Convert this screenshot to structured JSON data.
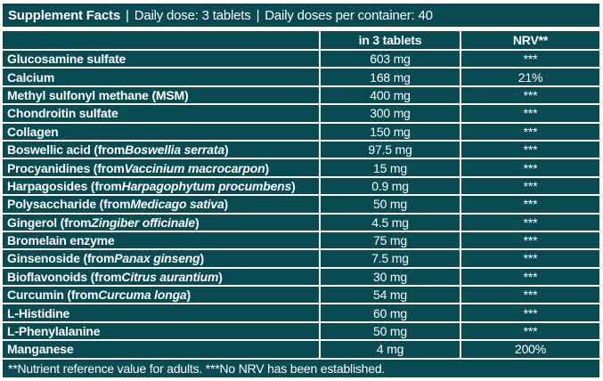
{
  "colors": {
    "panel_teal": "#084b53",
    "text_white": "#ffffff",
    "page_background": "#ffffff"
  },
  "title_bar": {
    "title": "Supplement Facts",
    "sep": "|",
    "daily_dose": "Daily dose: 3 tablets",
    "doses_per_container": "Daily doses per container: 40"
  },
  "table": {
    "column_headers": {
      "name": "",
      "amount": "in 3 tablets",
      "nrv": "NRV**"
    },
    "rows": [
      {
        "name": "Glucosamine sulfate",
        "latin": "",
        "name_end": "",
        "amount": "603 mg",
        "nrv": "***"
      },
      {
        "name": "Calcium",
        "latin": "",
        "name_end": "",
        "amount": "168 mg",
        "nrv": "21%"
      },
      {
        "name": "Methyl sulfonyl methane (MSM)",
        "latin": "",
        "name_end": "",
        "amount": "400 mg",
        "nrv": "***"
      },
      {
        "name": "Chondroitin sulfate",
        "latin": "",
        "name_end": "",
        "amount": "300 mg",
        "nrv": "***"
      },
      {
        "name": "Collagen",
        "latin": "",
        "name_end": "",
        "amount": "150 mg",
        "nrv": "***"
      },
      {
        "name": "Boswellic acid (from ",
        "latin": "Boswellia serrata",
        "name_end": ")",
        "amount": "97.5 mg",
        "nrv": "***"
      },
      {
        "name": "Procyanidines (from ",
        "latin": "Vaccinium macrocarpon",
        "name_end": ")",
        "amount": "15 mg",
        "nrv": "***"
      },
      {
        "name": "Harpagosides (from ",
        "latin": "Harpagophytum procumbens",
        "name_end": ")",
        "amount": "0.9 mg",
        "nrv": "***"
      },
      {
        "name": "Polysaccharide (from ",
        "latin": "Medicago sativa",
        "name_end": ")",
        "amount": "50 mg",
        "nrv": "***"
      },
      {
        "name": "Gingerol (from ",
        "latin": "Zingiber officinale",
        "name_end": ")",
        "amount": "4.5 mg",
        "nrv": "***"
      },
      {
        "name": "Bromelain enzyme",
        "latin": "",
        "name_end": "",
        "amount": "75 mg",
        "nrv": "***"
      },
      {
        "name": "Ginsenoside (from ",
        "latin": "Panax ginseng",
        "name_end": ")",
        "amount": "7.5 mg",
        "nrv": "***"
      },
      {
        "name": "Bioflavonoids (from ",
        "latin": "Citrus aurantium",
        "name_end": ")",
        "amount": "30 mg",
        "nrv": "***"
      },
      {
        "name": "Curcumin (from ",
        "latin": "Curcuma longa",
        "name_end": ")",
        "amount": "54 mg",
        "nrv": "***"
      },
      {
        "name": "L-Histidine",
        "latin": "",
        "name_end": "",
        "amount": "60 mg",
        "nrv": "***"
      },
      {
        "name": "L-Phenylalanine",
        "latin": "",
        "name_end": "",
        "amount": "50 mg",
        "nrv": "***"
      },
      {
        "name": "Manganese",
        "latin": "",
        "name_end": "",
        "amount": "4 mg",
        "nrv": "200%"
      }
    ]
  },
  "footnote": "**Nutrient reference value for adults. ***No NRV has been established."
}
